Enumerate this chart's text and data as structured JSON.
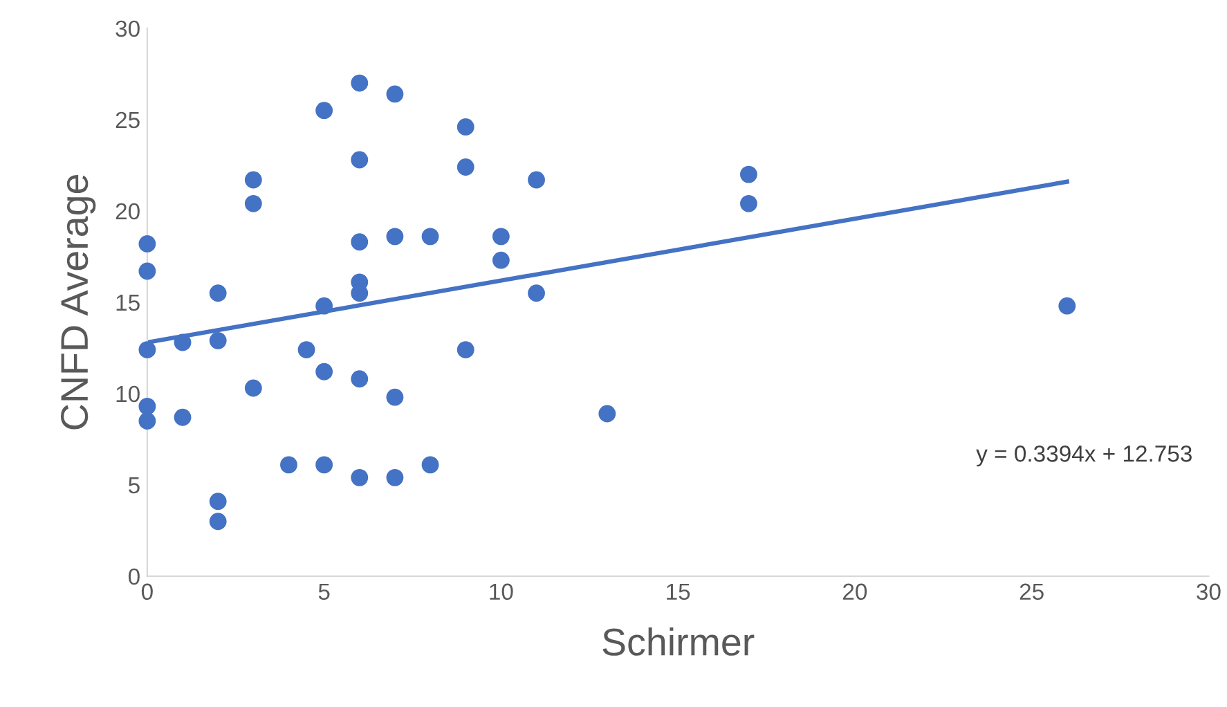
{
  "chart_data": {
    "type": "scatter",
    "xlabel": "Schirmer",
    "ylabel": "CNFD Average",
    "xlim": [
      0,
      30
    ],
    "ylim": [
      0,
      30
    ],
    "xticks": [
      0,
      5,
      10,
      15,
      20,
      25,
      30
    ],
    "yticks": [
      0,
      5,
      10,
      15,
      20,
      25,
      30
    ],
    "grid": false,
    "marker": "circle",
    "series": [
      {
        "color": "#4472c4",
        "x": [
          0,
          0,
          0,
          0,
          0,
          1,
          1,
          2,
          2,
          2,
          2,
          3,
          3,
          3,
          4,
          4.5,
          5,
          5,
          5,
          5,
          6,
          6,
          6,
          6,
          6,
          6,
          6,
          7,
          7,
          7,
          7,
          8,
          8,
          9,
          9,
          9,
          10,
          10,
          11,
          11,
          13,
          17,
          17,
          26
        ],
        "values": [
          18.2,
          16.7,
          12.4,
          9.3,
          8.5,
          12.8,
          8.7,
          15.5,
          12.9,
          4.1,
          3.0,
          21.7,
          20.4,
          10.3,
          6.1,
          12.4,
          25.5,
          14.8,
          11.2,
          6.1,
          27.0,
          22.8,
          18.3,
          16.1,
          15.5,
          10.8,
          5.4,
          26.4,
          18.6,
          9.8,
          5.4,
          18.6,
          6.1,
          24.6,
          22.4,
          12.4,
          18.6,
          17.3,
          21.7,
          15.5,
          8.9,
          22.0,
          20.4,
          14.8
        ]
      },
      {
        "type": "line",
        "marker": "none",
        "color": "#4472c4",
        "x": [
          0,
          26
        ],
        "values": [
          12.8,
          21.6
        ]
      }
    ],
    "annotations": [
      "y = 0.3394x + 12.753"
    ]
  }
}
